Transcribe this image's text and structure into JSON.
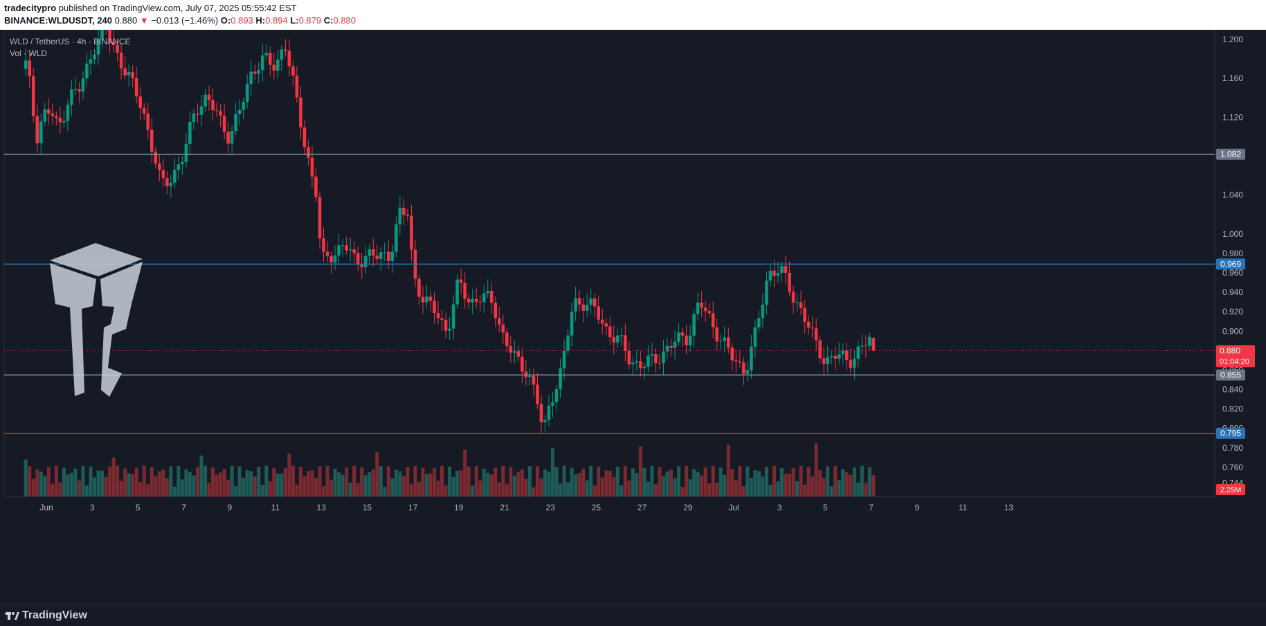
{
  "header": {
    "author": "tradecitypro",
    "published": "published on TradingView.com, July 07, 2025 05:55:42 EST",
    "symbol": "BINANCE:WLDUSDT, 240",
    "last": "0.880",
    "arrow": "▼",
    "change": "−0.013 (−1.46%)",
    "o_label": "O:",
    "o_val": "0.893",
    "h_label": "H:",
    "h_val": "0.894",
    "l_label": "L:",
    "l_val": "0.879",
    "c_label": "C:",
    "c_val": "0.880"
  },
  "legend": {
    "pair": "WLD / TetherUS · 4h · BINANCE",
    "volume": "Vol · WLD"
  },
  "footer": {
    "brand": "TradingView"
  },
  "colors": {
    "background": "#161a25",
    "up": "#089981",
    "down": "#f23645",
    "grid": "#1f2330",
    "hline_gray": "#8a94a6",
    "hline_blue": "#2962ff",
    "text": "#b2b5be"
  },
  "chart_data": {
    "type": "candlestick",
    "title": "WLD / TetherUS · 4h · BINANCE",
    "ylim": [
      0.73,
      1.21
    ],
    "y_ticks": [
      "1.200",
      "1.160",
      "1.120",
      "1.040",
      "1.000",
      "0.980",
      "0.960",
      "0.940",
      "0.920",
      "0.900",
      "0.860",
      "0.840",
      "0.820",
      "0.800",
      "0.780",
      "0.760",
      "0.744"
    ],
    "x_ticks": [
      {
        "label": "Jun",
        "day": 1
      },
      {
        "label": "3",
        "day": 3
      },
      {
        "label": "5",
        "day": 5
      },
      {
        "label": "7",
        "day": 7
      },
      {
        "label": "9",
        "day": 9
      },
      {
        "label": "11",
        "day": 11
      },
      {
        "label": "13",
        "day": 13
      },
      {
        "label": "15",
        "day": 15
      },
      {
        "label": "17",
        "day": 17
      },
      {
        "label": "19",
        "day": 19
      },
      {
        "label": "21",
        "day": 21
      },
      {
        "label": "23",
        "day": 23
      },
      {
        "label": "25",
        "day": 25
      },
      {
        "label": "27",
        "day": 27
      },
      {
        "label": "29",
        "day": 29
      },
      {
        "label": "Jul",
        "day": 31
      },
      {
        "label": "3",
        "day": 33
      },
      {
        "label": "5",
        "day": 35
      },
      {
        "label": "7",
        "day": 37
      },
      {
        "label": "9",
        "day": 39
      },
      {
        "label": "11",
        "day": 41
      },
      {
        "label": "13",
        "day": 43
      }
    ],
    "horizontal_lines": [
      {
        "value": 1.082,
        "label": "1.082",
        "style": "gray"
      },
      {
        "value": 0.969,
        "label": "0.969",
        "style": "blue"
      },
      {
        "value": 0.855,
        "label": "0.855",
        "style": "gray"
      },
      {
        "value": 0.795,
        "label": "0.795",
        "style": "blue"
      }
    ],
    "last_price": {
      "value": 0.88,
      "label": "0.880",
      "countdown": "01:04:20"
    },
    "volume_label": "2.25M",
    "anchors": [
      {
        "day": 0.2,
        "close": 1.17
      },
      {
        "day": 0.6,
        "close": 1.1
      },
      {
        "day": 1.0,
        "close": 1.13
      },
      {
        "day": 1.5,
        "close": 1.11
      },
      {
        "day": 2.0,
        "close": 1.14
      },
      {
        "day": 2.5,
        "close": 1.15
      },
      {
        "day": 3.0,
        "close": 1.19
      },
      {
        "day": 3.6,
        "close": 1.21
      },
      {
        "day": 4.0,
        "close": 1.19
      },
      {
        "day": 4.6,
        "close": 1.16
      },
      {
        "day": 5.2,
        "close": 1.13
      },
      {
        "day": 5.6,
        "close": 1.09
      },
      {
        "day": 6.0,
        "close": 1.05
      },
      {
        "day": 6.5,
        "close": 1.06
      },
      {
        "day": 7.0,
        "close": 1.08
      },
      {
        "day": 7.5,
        "close": 1.13
      },
      {
        "day": 8.0,
        "close": 1.14
      },
      {
        "day": 8.5,
        "close": 1.12
      },
      {
        "day": 9.0,
        "close": 1.1
      },
      {
        "day": 9.5,
        "close": 1.13
      },
      {
        "day": 10.0,
        "close": 1.17
      },
      {
        "day": 10.5,
        "close": 1.18
      },
      {
        "day": 11.0,
        "close": 1.17
      },
      {
        "day": 11.4,
        "close": 1.2
      },
      {
        "day": 11.8,
        "close": 1.15
      },
      {
        "day": 12.3,
        "close": 1.09
      },
      {
        "day": 12.8,
        "close": 1.04
      },
      {
        "day": 13.0,
        "close": 0.97
      },
      {
        "day": 13.5,
        "close": 0.98
      },
      {
        "day": 14.0,
        "close": 0.99
      },
      {
        "day": 14.5,
        "close": 0.97
      },
      {
        "day": 15.0,
        "close": 0.98
      },
      {
        "day": 15.5,
        "close": 0.975
      },
      {
        "day": 16.0,
        "close": 0.98
      },
      {
        "day": 16.4,
        "close": 1.02
      },
      {
        "day": 16.8,
        "close": 1.02
      },
      {
        "day": 17.0,
        "close": 0.96
      },
      {
        "day": 17.5,
        "close": 0.93
      },
      {
        "day": 18.0,
        "close": 0.92
      },
      {
        "day": 18.5,
        "close": 0.9
      },
      {
        "day": 19.0,
        "close": 0.95
      },
      {
        "day": 19.5,
        "close": 0.93
      },
      {
        "day": 20.0,
        "close": 0.935
      },
      {
        "day": 20.5,
        "close": 0.93
      },
      {
        "day": 21.0,
        "close": 0.89
      },
      {
        "day": 21.5,
        "close": 0.87
      },
      {
        "day": 22.0,
        "close": 0.86
      },
      {
        "day": 22.4,
        "close": 0.83
      },
      {
        "day": 22.7,
        "close": 0.795
      },
      {
        "day": 23.0,
        "close": 0.83
      },
      {
        "day": 23.5,
        "close": 0.86
      },
      {
        "day": 24.0,
        "close": 0.93
      },
      {
        "day": 24.5,
        "close": 0.93
      },
      {
        "day": 25.0,
        "close": 0.92
      },
      {
        "day": 25.5,
        "close": 0.9
      },
      {
        "day": 26.0,
        "close": 0.89
      },
      {
        "day": 26.5,
        "close": 0.87
      },
      {
        "day": 27.0,
        "close": 0.865
      },
      {
        "day": 27.5,
        "close": 0.87
      },
      {
        "day": 28.0,
        "close": 0.88
      },
      {
        "day": 28.5,
        "close": 0.89
      },
      {
        "day": 29.0,
        "close": 0.895
      },
      {
        "day": 29.5,
        "close": 0.93
      },
      {
        "day": 30.0,
        "close": 0.91
      },
      {
        "day": 30.5,
        "close": 0.89
      },
      {
        "day": 31.0,
        "close": 0.87
      },
      {
        "day": 31.5,
        "close": 0.86
      },
      {
        "day": 32.0,
        "close": 0.9
      },
      {
        "day": 32.5,
        "close": 0.96
      },
      {
        "day": 33.0,
        "close": 0.965
      },
      {
        "day": 33.5,
        "close": 0.94
      },
      {
        "day": 34.0,
        "close": 0.92
      },
      {
        "day": 34.5,
        "close": 0.89
      },
      {
        "day": 35.0,
        "close": 0.87
      },
      {
        "day": 35.5,
        "close": 0.875
      },
      {
        "day": 36.0,
        "close": 0.87
      },
      {
        "day": 36.5,
        "close": 0.88
      },
      {
        "day": 37.0,
        "close": 0.893
      },
      {
        "day": 37.2,
        "close": 0.88
      }
    ]
  }
}
